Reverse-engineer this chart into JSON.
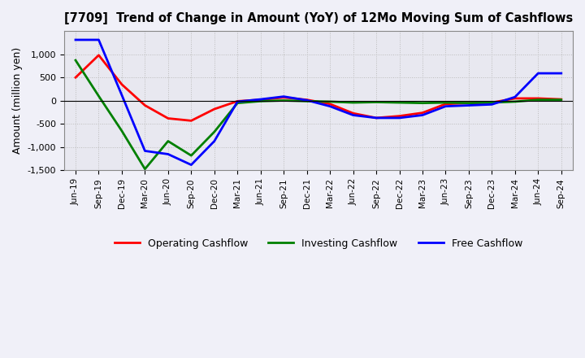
{
  "title": "[7709]  Trend of Change in Amount (YoY) of 12Mo Moving Sum of Cashflows",
  "ylabel": "Amount (million yen)",
  "x_labels": [
    "Jun-19",
    "Sep-19",
    "Dec-19",
    "Mar-20",
    "Jun-20",
    "Sep-20",
    "Dec-20",
    "Mar-21",
    "Jun-21",
    "Sep-21",
    "Dec-21",
    "Mar-22",
    "Jun-22",
    "Sep-22",
    "Dec-22",
    "Mar-23",
    "Jun-23",
    "Sep-23",
    "Dec-23",
    "Mar-24",
    "Jun-24",
    "Sep-24"
  ],
  "operating": [
    500,
    980,
    350,
    -100,
    -380,
    -430,
    -180,
    -10,
    20,
    70,
    20,
    -70,
    -270,
    -370,
    -330,
    -260,
    -70,
    -50,
    -40,
    50,
    50,
    30
  ],
  "investing": [
    870,
    100,
    -650,
    -1470,
    -870,
    -1180,
    -670,
    -50,
    -10,
    5,
    -10,
    -20,
    -40,
    -30,
    -40,
    -50,
    -40,
    -50,
    -40,
    -20,
    20,
    20
  ],
  "free": [
    1310,
    1310,
    120,
    -1080,
    -1150,
    -1380,
    -870,
    -20,
    30,
    90,
    10,
    -120,
    -310,
    -370,
    -370,
    -310,
    -120,
    -100,
    -80,
    80,
    590,
    590
  ],
  "operating_color": "#ff0000",
  "investing_color": "#008000",
  "free_color": "#0000ff",
  "ylim": [
    -1500,
    1500
  ],
  "yticks": [
    -1500,
    -1000,
    -500,
    0,
    500,
    1000
  ],
  "bg_color": "#f0f0f8",
  "plot_bg_color": "#e8e8f0",
  "grid_color": "#bbbbbb"
}
